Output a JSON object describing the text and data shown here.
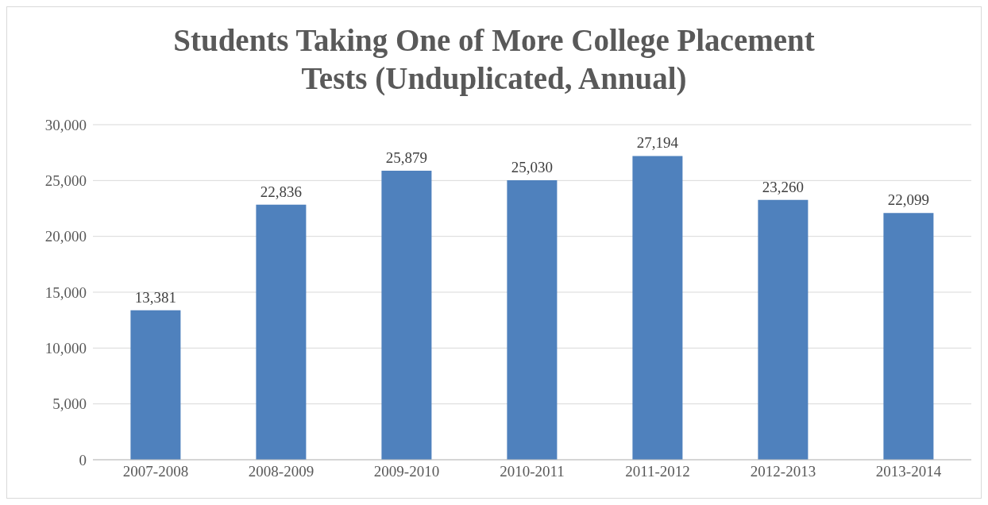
{
  "chart_data": {
    "type": "bar",
    "title": "Students Taking One of More College Placement Tests (Unduplicated, Annual)",
    "categories": [
      "2007-2008",
      "2008-2009",
      "2009-2010",
      "2010-2011",
      "2011-2012",
      "2012-2013",
      "2013-2014"
    ],
    "values": [
      13381,
      22836,
      25879,
      25030,
      27194,
      23260,
      22099
    ],
    "value_labels": [
      "13,381",
      "22,836",
      "25,879",
      "25,030",
      "27,194",
      "23,260",
      "22,099"
    ],
    "color": "#4f81bd",
    "ylim": [
      0,
      30000
    ],
    "yticks": [
      0,
      {
        "value": 5000,
        "label": "5,000"
      },
      {
        "value": 10000,
        "label": "10,000"
      },
      {
        "value": 15000,
        "label": "15,000"
      },
      {
        "value": 20000,
        "label": "20,000"
      },
      {
        "value": 25000,
        "label": "25,000"
      },
      {
        "value": 30000,
        "label": "30,000"
      }
    ],
    "grid": "y"
  }
}
